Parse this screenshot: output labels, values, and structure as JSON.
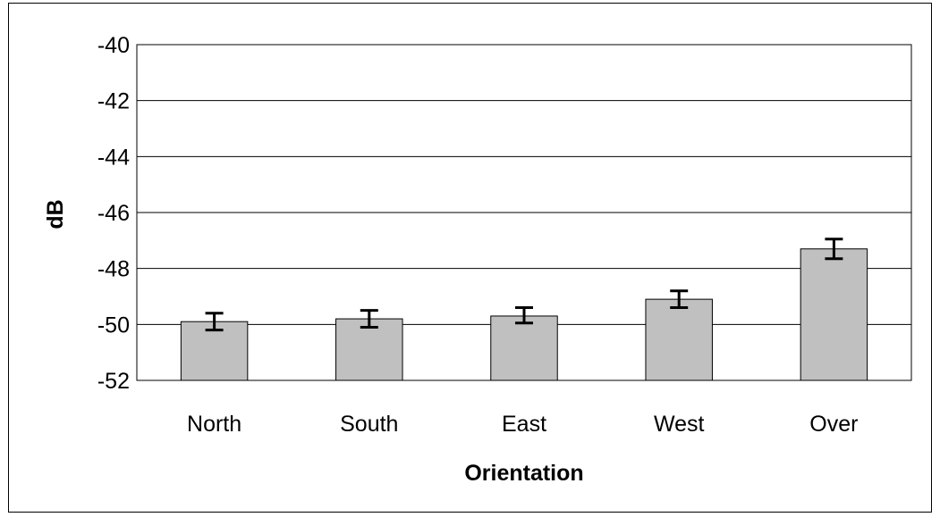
{
  "chart_data": {
    "type": "bar",
    "title": "",
    "xlabel": "Orientation",
    "ylabel": "dB",
    "categories": [
      "North",
      "South",
      "East",
      "West",
      "Over"
    ],
    "values": [
      -49.9,
      -49.8,
      -49.7,
      -49.1,
      -47.3
    ],
    "error_bars": [
      [
        -50.2,
        -49.6
      ],
      [
        -50.1,
        -49.5
      ],
      [
        -49.95,
        -49.4
      ],
      [
        -49.4,
        -48.8
      ],
      [
        -47.65,
        -46.95
      ]
    ],
    "yticks": [
      "-40",
      "-42",
      "-44",
      "-46",
      "-48",
      "-50",
      "-52"
    ],
    "ylim": [
      -52,
      -40
    ],
    "grid": true,
    "legend": "none",
    "bar_color": "#c0c0c0",
    "bar_edge_color": "#000000"
  }
}
